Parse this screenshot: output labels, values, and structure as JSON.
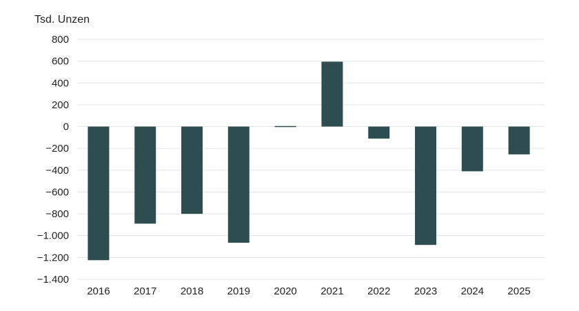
{
  "chart_data": {
    "type": "bar",
    "title": "",
    "xlabel": "",
    "ylabel": "Tsd. Unzen",
    "ylim": [
      -1400,
      800
    ],
    "yticks": [
      800,
      600,
      400,
      200,
      0,
      -200,
      -400,
      -600,
      -800,
      -1000,
      -1200,
      -1400
    ],
    "ytick_labels": [
      "800",
      "600",
      "400",
      "200",
      "0",
      "−200",
      "−400",
      "−600",
      "−800",
      "−1.000",
      "−1.200",
      "−1.400"
    ],
    "grid": true,
    "categories": [
      "2016",
      "2017",
      "2018",
      "2019",
      "2020",
      "2021",
      "2022",
      "2023",
      "2024",
      "2025"
    ],
    "values": [
      -1225,
      -890,
      -800,
      -1065,
      5,
      595,
      -110,
      -1085,
      -410,
      -255
    ],
    "bar_color": "#2e4d50"
  }
}
